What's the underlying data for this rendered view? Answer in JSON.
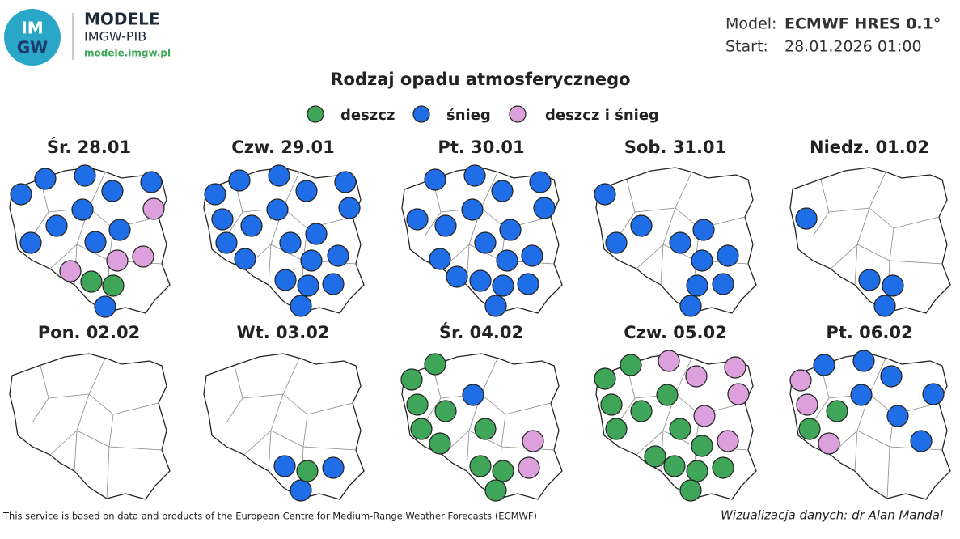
{
  "header": {
    "logo": [
      "IM",
      "GW"
    ],
    "brand": "MODELE",
    "org": "IMGW-PIB",
    "url": "modele.imgw.pl",
    "model_label": "Model:",
    "model_value": "ECMWF HRES 0.1°",
    "start_label": "Start:",
    "start_value": "28.01.2026 01:00"
  },
  "title": "Rodzaj opadu atmosferycznego",
  "legend": [
    {
      "label": "deszcz",
      "color": "#3fa558"
    },
    {
      "label": "śnieg",
      "color": "#1f6ee8"
    },
    {
      "label": "deszcz i śnieg",
      "color": "#dca0dc"
    }
  ],
  "panels": [
    {
      "label": "Śr. 28.01",
      "points": [
        "śnieg",
        "śnieg",
        "śnieg",
        "śnieg",
        "śnieg",
        "śnieg",
        "śnieg",
        "śnieg",
        "śnieg",
        "śnieg",
        "śnieg",
        "deszcz i śnieg",
        "deszcz i śnieg",
        "deszcz i śnieg",
        "deszcz i śnieg",
        "deszcz",
        "deszcz"
      ]
    },
    {
      "label": "Czw. 29.01",
      "points": [
        "śnieg",
        "śnieg",
        "śnieg",
        "śnieg",
        "śnieg",
        "śnieg",
        "śnieg",
        "śnieg",
        "śnieg",
        "śnieg",
        "śnieg",
        "śnieg",
        "śnieg",
        "śnieg",
        "śnieg",
        "śnieg",
        "śnieg",
        "śnieg",
        "śnieg"
      ]
    },
    {
      "label": "Pt. 30.01",
      "points": [
        "śnieg",
        "śnieg",
        "śnieg",
        "śnieg",
        "śnieg",
        "śnieg",
        "śnieg",
        "śnieg",
        "śnieg",
        "śnieg",
        "śnieg",
        "śnieg",
        "śnieg",
        "śnieg",
        "śnieg",
        "śnieg",
        "śnieg",
        "śnieg"
      ]
    },
    {
      "label": "Sob. 31.01",
      "points": [
        "śnieg",
        "śnieg",
        "śnieg",
        "śnieg",
        "śnieg",
        "śnieg",
        "śnieg",
        "śnieg",
        "śnieg",
        "śnieg"
      ]
    },
    {
      "label": "Niedz. 01.02",
      "points": [
        "śnieg",
        "śnieg",
        "śnieg",
        "śnieg"
      ]
    },
    {
      "label": "Pon. 02.02",
      "points": []
    },
    {
      "label": "Wt. 03.02",
      "points": [
        "śnieg",
        "śnieg",
        "śnieg",
        "deszcz"
      ]
    },
    {
      "label": "Śr. 04.02",
      "points": [
        "deszcz",
        "deszcz",
        "deszcz",
        "deszcz",
        "deszcz",
        "deszcz",
        "deszcz",
        "deszcz",
        "deszcz",
        "deszcz",
        "śnieg",
        "deszcz i śnieg",
        "deszcz i śnieg"
      ]
    },
    {
      "label": "Czw. 05.02",
      "points": [
        "deszcz",
        "deszcz",
        "deszcz",
        "deszcz",
        "deszcz",
        "deszcz",
        "deszcz",
        "deszcz",
        "deszcz",
        "deszcz",
        "deszcz",
        "deszcz",
        "deszcz",
        "deszcz i śnieg",
        "deszcz i śnieg",
        "deszcz i śnieg",
        "deszcz i śnieg",
        "deszcz i śnieg",
        "deszcz i śnieg"
      ]
    },
    {
      "label": "Pt. 06.02",
      "points": [
        "śnieg",
        "śnieg",
        "śnieg",
        "śnieg",
        "śnieg",
        "śnieg",
        "śnieg",
        "deszcz i śnieg",
        "deszcz i śnieg",
        "deszcz i śnieg",
        "deszcz",
        "deszcz"
      ]
    }
  ],
  "footer": {
    "source": "This service is based on data and products of the European Centre for Medium-Range Weather Forecasts (ECMWF)",
    "credit": "Wizualizacja danych: dr Alan Mandal"
  }
}
